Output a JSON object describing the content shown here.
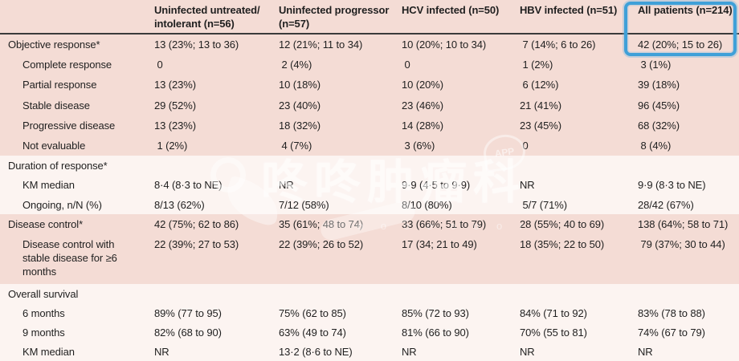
{
  "highlight": {
    "color": "#3fa0d8"
  },
  "watermark": {
    "brand_text": "咚咚肿瘤科",
    "app_label": "APP",
    "dots_text": "o o o o o o o r"
  },
  "table": {
    "columns": [
      "",
      "Uninfected untreated/\nintolerant (n=56)",
      "Uninfected progressor\n(n=57)",
      "HCV infected (n=50)",
      "HBV infected (n=51)",
      "All patients (n=214)"
    ],
    "rows": [
      {
        "label": "Objective response*",
        "values": [
          "13 (23%; 13 to 36)",
          "12 (21%; 11 to 34)",
          "10 (20%; 10 to 34)",
          " 7 (14%; 6 to 26)",
          "42 (20%; 15 to 26)"
        ]
      },
      {
        "label": "Complete response",
        "values": [
          " 0",
          " 2 (4%)",
          " 0",
          " 1 (2%)",
          " 3 (1%)"
        ]
      },
      {
        "label": "Partial response",
        "values": [
          "13 (23%)",
          "10 (18%)",
          "10 (20%)",
          " 6 (12%)",
          "39 (18%)"
        ]
      },
      {
        "label": "Stable disease",
        "values": [
          "29 (52%)",
          "23 (40%)",
          "23 (46%)",
          "21 (41%)",
          "96 (45%)"
        ]
      },
      {
        "label": "Progressive disease",
        "values": [
          "13 (23%)",
          "18 (32%)",
          "14 (28%)",
          "23 (45%)",
          "68 (32%)"
        ]
      },
      {
        "label": "Not evaluable",
        "values": [
          " 1 (2%)",
          " 4 (7%)",
          " 3 (6%)",
          " 0",
          " 8 (4%)"
        ]
      },
      {
        "label": "Duration of response*",
        "values": [
          "",
          "",
          "",
          "",
          ""
        ]
      },
      {
        "label": "KM median",
        "values": [
          "8·4 (8·3 to NE)",
          "NR",
          "9·9 (4·5 to 9·9)",
          "NR",
          "9·9 (8·3 to NE)"
        ]
      },
      {
        "label": "Ongoing, n/N (%)",
        "values": [
          "8/13 (62%)",
          "7/12 (58%)",
          "8/10 (80%)",
          " 5/7 (71%)",
          "28/42 (67%)"
        ]
      },
      {
        "label": "Disease control*",
        "values": [
          "42 (75%; 62 to 86)",
          "35 (61%; 48 to 74)",
          "33 (66%; 51 to 79)",
          "28 (55%; 40 to 69)",
          "138 (64%; 58 to 71)"
        ]
      },
      {
        "label": "Disease control with stable disease for ≥6 months",
        "values": [
          "22 (39%; 27 to 53)",
          "22 (39%; 26 to 52)",
          "17 (34; 21 to 49)",
          "18 (35%; 22 to 50)",
          " 79 (37%; 30 to 44)"
        ]
      },
      {
        "label": "Overall survival",
        "values": [
          "",
          "",
          "",
          "",
          ""
        ]
      },
      {
        "label": "6 months",
        "values": [
          "89% (77 to 95)",
          "75% (62 to 85)",
          "85% (72 to 93)",
          "84% (71 to 92)",
          "83% (78 to 88)"
        ]
      },
      {
        "label": "9 months",
        "values": [
          "82% (68 to 90)",
          "63% (49 to 74)",
          "81% (66 to 90)",
          "70% (55 to 81)",
          "74% (67 to 79)"
        ]
      },
      {
        "label": "KM median",
        "values": [
          "NR",
          "13·2 (8·6 to NE)",
          "NR",
          "NR",
          "NR"
        ]
      }
    ]
  }
}
